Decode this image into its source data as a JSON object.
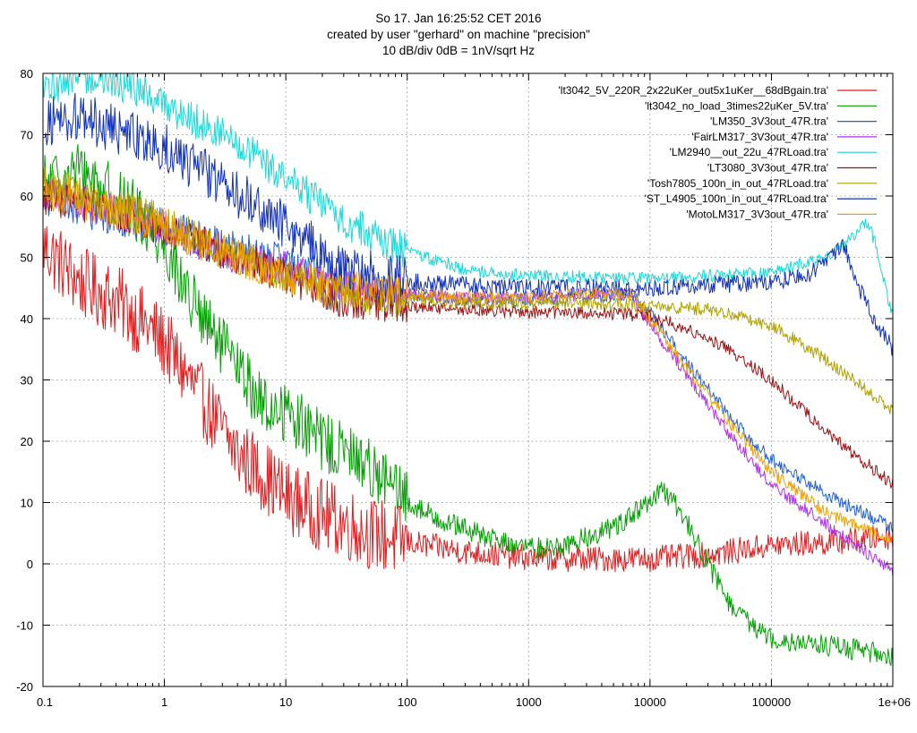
{
  "chart_data": {
    "type": "line",
    "title_lines": [
      "So 17. Jan 16:25:52 CET 2016",
      "created by user \"gerhard\" on machine \"precision\"",
      "10 dB/div   0dB = 1nV/sqrt Hz"
    ],
    "xscale": "log",
    "xlim": [
      0.1,
      1000000
    ],
    "ylim": [
      -20,
      80
    ],
    "x_ticks": [
      0.1,
      1,
      10,
      100,
      1000,
      10000,
      100000,
      1000000
    ],
    "x_tick_labels": [
      "0.1",
      "1",
      "10",
      "100",
      "1000",
      "10000",
      "100000",
      "1e+06"
    ],
    "y_ticks": [
      -20,
      -10,
      0,
      10,
      20,
      30,
      40,
      50,
      60,
      70,
      80
    ],
    "y_tick_labels": [
      "-20",
      "-10",
      "0",
      "10",
      "20",
      "30",
      "40",
      "50",
      "60",
      "70",
      "80"
    ],
    "grid": true,
    "legend_position": "top-right",
    "series": [
      {
        "name": "'lt3042_5V_220R_2x22uKer_out5x1uKer__68dBgain.tra'",
        "color": "#e41a1c",
        "noise": 6,
        "points": [
          [
            0.1,
            52
          ],
          [
            0.2,
            46
          ],
          [
            0.4,
            43
          ],
          [
            0.7,
            39
          ],
          [
            1,
            36
          ],
          [
            2,
            27
          ],
          [
            4,
            18
          ],
          [
            7,
            14
          ],
          [
            10,
            11
          ],
          [
            20,
            8
          ],
          [
            50,
            5
          ],
          [
            100,
            3.5
          ],
          [
            300,
            2
          ],
          [
            1000,
            1
          ],
          [
            3000,
            0.8
          ],
          [
            10000,
            0.8
          ],
          [
            30000,
            1.5
          ],
          [
            100000,
            3
          ],
          [
            300000,
            3.5
          ],
          [
            1000000,
            4.5
          ]
        ]
      },
      {
        "name": "'lt3042_no_load_3times22uKer_5V.tra'",
        "color": "#00a000",
        "noise": 5,
        "points": [
          [
            0.1,
            62
          ],
          [
            0.2,
            64
          ],
          [
            0.4,
            60
          ],
          [
            0.7,
            56
          ],
          [
            1,
            52
          ],
          [
            2,
            40
          ],
          [
            4,
            32
          ],
          [
            7,
            25
          ],
          [
            10,
            25
          ],
          [
            20,
            20
          ],
          [
            50,
            16
          ],
          [
            100,
            10
          ],
          [
            200,
            7
          ],
          [
            500,
            4
          ],
          [
            1000,
            2.5
          ],
          [
            2000,
            3
          ],
          [
            5000,
            6
          ],
          [
            10000,
            10
          ],
          [
            13000,
            12
          ],
          [
            20000,
            7
          ],
          [
            30000,
            0
          ],
          [
            50000,
            -8
          ],
          [
            100000,
            -12
          ],
          [
            200000,
            -13
          ],
          [
            500000,
            -14
          ],
          [
            1000000,
            -15
          ]
        ]
      },
      {
        "name": "'LM350_3V3out_47R.tra'",
        "color": "#1f5fd8",
        "noise": 3,
        "points": [
          [
            0.1,
            60
          ],
          [
            0.3,
            57
          ],
          [
            1,
            55
          ],
          [
            3,
            52
          ],
          [
            10,
            49
          ],
          [
            30,
            46
          ],
          [
            100,
            44
          ],
          [
            300,
            43
          ],
          [
            1000,
            43
          ],
          [
            3000,
            43.5
          ],
          [
            7000,
            44
          ],
          [
            10000,
            41
          ],
          [
            20000,
            33
          ],
          [
            50000,
            23
          ],
          [
            100000,
            17
          ],
          [
            300000,
            11
          ],
          [
            1000000,
            6
          ]
        ]
      },
      {
        "name": "'FairLM317_3V3out_47R.tra'",
        "color": "#b030f0",
        "noise": 3,
        "points": [
          [
            0.1,
            61
          ],
          [
            0.3,
            58
          ],
          [
            1,
            55
          ],
          [
            3,
            51
          ],
          [
            10,
            48
          ],
          [
            30,
            45
          ],
          [
            100,
            44
          ],
          [
            300,
            43.5
          ],
          [
            1000,
            43.5
          ],
          [
            3000,
            44
          ],
          [
            7000,
            44
          ],
          [
            10000,
            39
          ],
          [
            20000,
            31
          ],
          [
            50000,
            20
          ],
          [
            100000,
            13
          ],
          [
            300000,
            6
          ],
          [
            1000000,
            -1
          ]
        ]
      },
      {
        "name": "'LM2940__out_22u_47RLoad.tra'",
        "color": "#19d8d8",
        "noise": 3,
        "points": [
          [
            0.1,
            77
          ],
          [
            0.2,
            80
          ],
          [
            0.5,
            78
          ],
          [
            1,
            75
          ],
          [
            3,
            70
          ],
          [
            10,
            63
          ],
          [
            30,
            56
          ],
          [
            100,
            51
          ],
          [
            300,
            48
          ],
          [
            1000,
            47
          ],
          [
            10000,
            46.5
          ],
          [
            100000,
            47.5
          ],
          [
            300000,
            50
          ],
          [
            500000,
            54
          ],
          [
            600000,
            56
          ],
          [
            700000,
            53
          ],
          [
            1000000,
            40
          ]
        ]
      },
      {
        "name": "'LT3080_3V3out_47R.tra'",
        "color": "#a01010",
        "noise": 3,
        "points": [
          [
            0.1,
            60
          ],
          [
            0.3,
            58
          ],
          [
            1,
            55
          ],
          [
            3,
            51
          ],
          [
            10,
            47
          ],
          [
            30,
            43
          ],
          [
            100,
            42
          ],
          [
            300,
            41.5
          ],
          [
            1000,
            41
          ],
          [
            3000,
            41
          ],
          [
            10000,
            40.5
          ],
          [
            30000,
            37
          ],
          [
            100000,
            30
          ],
          [
            300000,
            21
          ],
          [
            1000000,
            13
          ]
        ]
      },
      {
        "name": "'Tosh7805_100n_in_out_47RLoad.tra'",
        "color": "#b0a000",
        "noise": 3,
        "points": [
          [
            0.1,
            62
          ],
          [
            0.3,
            59
          ],
          [
            1,
            56
          ],
          [
            3,
            51
          ],
          [
            10,
            47
          ],
          [
            30,
            44
          ],
          [
            100,
            43
          ],
          [
            300,
            42.5
          ],
          [
            1000,
            42.5
          ],
          [
            3000,
            42.5
          ],
          [
            10000,
            42
          ],
          [
            30000,
            41.5
          ],
          [
            100000,
            39
          ],
          [
            300000,
            33
          ],
          [
            1000000,
            25
          ]
        ]
      },
      {
        "name": "'ST_L4905_100n_in_out_47RLoad.tra'",
        "color": "#1030c0",
        "noise": 4,
        "points": [
          [
            0.1,
            72
          ],
          [
            0.2,
            73
          ],
          [
            0.5,
            70
          ],
          [
            1,
            68
          ],
          [
            3,
            62
          ],
          [
            10,
            55
          ],
          [
            30,
            48
          ],
          [
            100,
            46
          ],
          [
            1000,
            45
          ],
          [
            10000,
            45
          ],
          [
            100000,
            46
          ],
          [
            200000,
            47
          ],
          [
            300000,
            50
          ],
          [
            400000,
            52
          ],
          [
            500000,
            46
          ],
          [
            700000,
            40
          ],
          [
            1000000,
            35
          ]
        ]
      },
      {
        "name": "'MotoLM317_3V3out_47R.tra'",
        "color": "#f0a000",
        "noise": 3,
        "points": [
          [
            0.1,
            61
          ],
          [
            0.3,
            58
          ],
          [
            1,
            55
          ],
          [
            3,
            51
          ],
          [
            10,
            47
          ],
          [
            30,
            45
          ],
          [
            100,
            44
          ],
          [
            300,
            43.5
          ],
          [
            1000,
            43.5
          ],
          [
            3000,
            44
          ],
          [
            7000,
            44
          ],
          [
            10000,
            40
          ],
          [
            20000,
            32
          ],
          [
            50000,
            22
          ],
          [
            100000,
            15
          ],
          [
            300000,
            8
          ],
          [
            1000000,
            4
          ]
        ]
      }
    ]
  }
}
